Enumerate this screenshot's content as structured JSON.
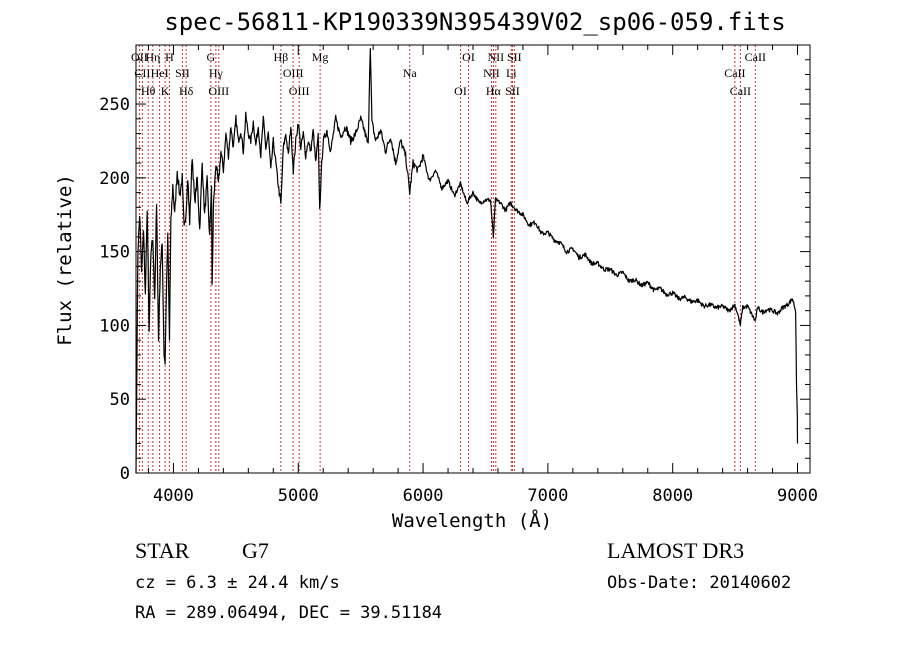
{
  "chart_data": {
    "type": "line",
    "title": "spec-56811-KP190339N395439V02_sp06-059.fits",
    "xlabel": "Wavelength (Å)",
    "ylabel": "Flux (relative)",
    "xlim": [
      3700,
      9100
    ],
    "ylim": [
      0,
      290
    ],
    "xticks": [
      4000,
      5000,
      6000,
      7000,
      8000,
      9000
    ],
    "yticks": [
      0,
      50,
      100,
      150,
      200,
      250
    ],
    "grid": false,
    "series": [
      {
        "name": "flux",
        "x": [
          3700,
          3715,
          3730,
          3745,
          3760,
          3775,
          3790,
          3805,
          3820,
          3835,
          3850,
          3865,
          3880,
          3895,
          3910,
          3925,
          3933,
          3945,
          3955,
          3968,
          3980,
          3995,
          4010,
          4030,
          4050,
          4070,
          4085,
          4101,
          4115,
          4130,
          4150,
          4170,
          4190,
          4210,
          4230,
          4250,
          4270,
          4290,
          4305,
          4310,
          4320,
          4340,
          4360,
          4380,
          4400,
          4420,
          4440,
          4460,
          4480,
          4500,
          4520,
          4540,
          4560,
          4580,
          4600,
          4620,
          4640,
          4660,
          4680,
          4700,
          4720,
          4740,
          4760,
          4780,
          4800,
          4820,
          4840,
          4861,
          4880,
          4900,
          4920,
          4940,
          4960,
          4980,
          5000,
          5020,
          5040,
          5060,
          5080,
          5100,
          5120,
          5140,
          5160,
          5172,
          5185,
          5200,
          5230,
          5260,
          5300,
          5340,
          5380,
          5420,
          5460,
          5500,
          5530,
          5560,
          5577,
          5590,
          5620,
          5660,
          5700,
          5740,
          5780,
          5820,
          5860,
          5893,
          5920,
          5960,
          6000,
          6050,
          6100,
          6150,
          6200,
          6250,
          6300,
          6350,
          6400,
          6450,
          6500,
          6540,
          6563,
          6580,
          6620,
          6660,
          6700,
          6750,
          6800,
          6850,
          6900,
          6950,
          7000,
          7050,
          7100,
          7150,
          7200,
          7250,
          7300,
          7350,
          7400,
          7450,
          7500,
          7550,
          7600,
          7650,
          7700,
          7750,
          7800,
          7850,
          7900,
          7950,
          8000,
          8050,
          8100,
          8150,
          8200,
          8250,
          8300,
          8350,
          8400,
          8450,
          8498,
          8520,
          8542,
          8560,
          8600,
          8630,
          8662,
          8680,
          8720,
          8760,
          8800,
          8840,
          8880,
          8920,
          8960,
          8985,
          8992,
          8998,
          9000
        ],
        "y": [
          0,
          150,
          175,
          135,
          165,
          120,
          180,
          95,
          150,
          160,
          115,
          185,
          90,
          140,
          155,
          80,
          75,
          130,
          160,
          90,
          170,
          195,
          175,
          205,
          188,
          200,
          165,
          178,
          200,
          170,
          215,
          183,
          200,
          165,
          210,
          175,
          198,
          160,
          195,
          125,
          180,
          210,
          195,
          218,
          205,
          230,
          215,
          235,
          220,
          240,
          225,
          232,
          218,
          242,
          230,
          225,
          238,
          222,
          235,
          215,
          240,
          220,
          230,
          205,
          225,
          210,
          195,
          182,
          220,
          230,
          215,
          235,
          205,
          225,
          238,
          220,
          230,
          215,
          225,
          218,
          232,
          210,
          228,
          178,
          205,
          225,
          232,
          218,
          240,
          228,
          235,
          225,
          230,
          240,
          232,
          222,
          290,
          238,
          225,
          232,
          218,
          228,
          210,
          225,
          215,
          190,
          210,
          205,
          215,
          198,
          205,
          193,
          198,
          188,
          196,
          183,
          190,
          183,
          185,
          185,
          160,
          185,
          183,
          178,
          183,
          178,
          175,
          168,
          170,
          162,
          163,
          158,
          156,
          150,
          152,
          146,
          148,
          142,
          142,
          138,
          138,
          134,
          136,
          130,
          131,
          127,
          129,
          124,
          125,
          121,
          122,
          118,
          119,
          116,
          117,
          113,
          114,
          112,
          113,
          110,
          114,
          108,
          100,
          112,
          113,
          108,
          103,
          112,
          109,
          111,
          110,
          108,
          112,
          114,
          118,
          110,
          60,
          40,
          20
        ]
      }
    ],
    "lines": [
      {
        "x": 3727,
        "label": "OII"
      },
      {
        "x": 3751,
        "label": "CII"
      },
      {
        "x": 3798,
        "label": "Hθ"
      },
      {
        "x": 3835,
        "label": "Hη"
      },
      {
        "x": 3889,
        "label": "HeI"
      },
      {
        "x": 3933,
        "label": "K"
      },
      {
        "x": 3968,
        "label": "H"
      },
      {
        "x": 4072,
        "label": "SII"
      },
      {
        "x": 4102,
        "label": "Hδ"
      },
      {
        "x": 4300,
        "label": "G"
      },
      {
        "x": 4340,
        "label": "Hγ"
      },
      {
        "x": 4363,
        "label": "OIII"
      },
      {
        "x": 4861,
        "label": "Hβ"
      },
      {
        "x": 4959,
        "label": "OIII"
      },
      {
        "x": 5007,
        "label": "OIII"
      },
      {
        "x": 5175,
        "label": "Mg"
      },
      {
        "x": 5893,
        "label": "Na"
      },
      {
        "x": 6300,
        "label": "OI"
      },
      {
        "x": 6364,
        "label": "OI"
      },
      {
        "x": 6548,
        "label": "NII"
      },
      {
        "x": 6563,
        "label": "Hα"
      },
      {
        "x": 6583,
        "label": "NII"
      },
      {
        "x": 6707,
        "label": "Li"
      },
      {
        "x": 6716,
        "label": "SII"
      },
      {
        "x": 6731,
        "label": "SII"
      },
      {
        "x": 8498,
        "label": "CaII"
      },
      {
        "x": 8542,
        "label": "CaII"
      },
      {
        "x": 8662,
        "label": "CaII"
      }
    ]
  },
  "info": {
    "class": "STAR",
    "subclass": "G7",
    "cz": "cz = 6.3 ± 24.4 km/s",
    "coords": "RA = 289.06494, DEC =  39.51184",
    "survey": "LAMOST DR3",
    "obs_date": "Obs-Date: 20140602"
  },
  "colors": {
    "line_marker": "#cc3333",
    "spectrum": "#000000",
    "axes": "#000000"
  }
}
